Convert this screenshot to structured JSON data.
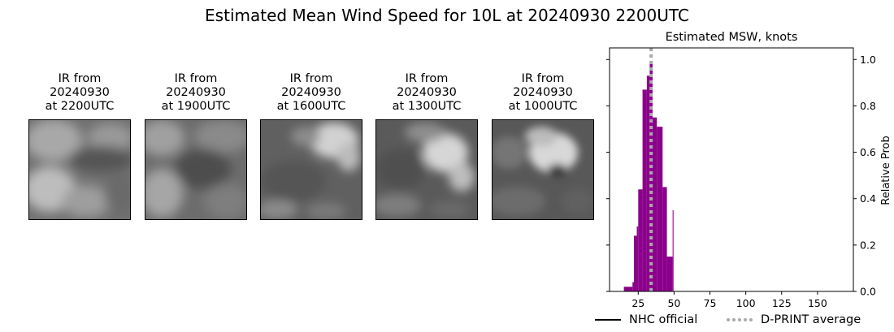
{
  "figure": {
    "title": "Estimated Mean Wind Speed for 10L at 20240930 2200UTC"
  },
  "ir_panels": [
    {
      "line1": "IR from",
      "line2": "20240930",
      "line3": "at 2200UTC"
    },
    {
      "line1": "IR from",
      "line2": "20240930",
      "line3": "at 1900UTC"
    },
    {
      "line1": "IR from",
      "line2": "20240930",
      "line3": "at 1600UTC"
    },
    {
      "line1": "IR from",
      "line2": "20240930",
      "line3": "at 1300UTC"
    },
    {
      "line1": "IR from",
      "line2": "20240930",
      "line3": "at 1000UTC"
    }
  ],
  "legend": {
    "nhc_label": "NHC official",
    "dprint_label": "D-PRINT average"
  },
  "colors": {
    "bars": "#8b008b",
    "dprint_line": "#a9a9a9",
    "nhc_line": "#000000"
  },
  "chart_data": {
    "type": "bar",
    "title": "Estimated MSW, knots",
    "xlabel": "",
    "ylabel": "Relative Prob",
    "xlim": [
      5,
      175
    ],
    "ylim": [
      0,
      1.05
    ],
    "xticks": [
      25,
      50,
      75,
      100,
      125,
      150
    ],
    "yticks": [
      0.0,
      0.2,
      0.4,
      0.6,
      0.8,
      1.0
    ],
    "ytick_labels": [
      "0.0",
      "0.2",
      "0.4",
      "0.6",
      "0.8",
      "1.0"
    ],
    "y_axis_side": "right",
    "bars": [
      {
        "x0": 15,
        "x1": 21,
        "value": 0.02
      },
      {
        "x0": 21,
        "x1": 22,
        "value": 0.04
      },
      {
        "x0": 22,
        "x1": 24,
        "value": 0.24
      },
      {
        "x0": 24,
        "x1": 25,
        "value": 0.28
      },
      {
        "x0": 25,
        "x1": 28,
        "value": 0.44
      },
      {
        "x0": 28,
        "x1": 31,
        "value": 0.87
      },
      {
        "x0": 31,
        "x1": 33,
        "value": 0.93
      },
      {
        "x0": 33,
        "x1": 35,
        "value": 0.98
      },
      {
        "x0": 35,
        "x1": 38,
        "value": 0.75
      },
      {
        "x0": 38,
        "x1": 42,
        "value": 0.71
      },
      {
        "x0": 42,
        "x1": 45,
        "value": 0.45
      },
      {
        "x0": 45,
        "x1": 49,
        "value": 0.15
      },
      {
        "x0": 49,
        "x1": 49.6,
        "value": 0.35
      }
    ],
    "dprint_average": 34,
    "nhc_official": null
  }
}
